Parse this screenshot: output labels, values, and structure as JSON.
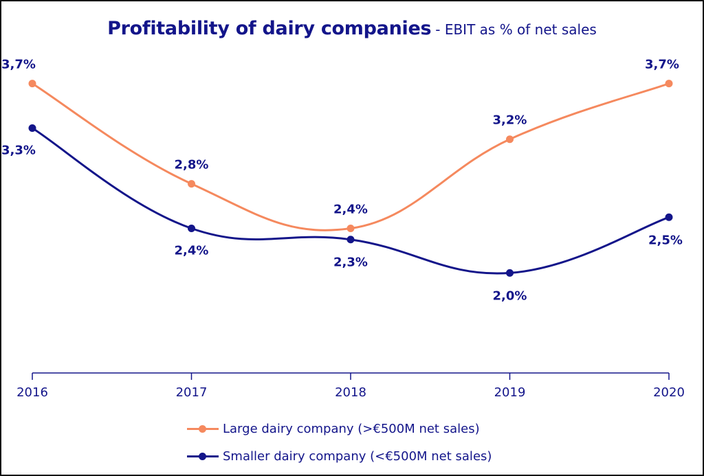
{
  "title": "Profitability of dairy companies",
  "subtitle": "- EBIT as % of net sales",
  "colors": {
    "large": "#f5895e",
    "small": "#13158a",
    "text": "#13158a"
  },
  "chart_data": {
    "type": "line",
    "title": "Profitability of dairy companies",
    "subtitle": "- EBIT as % of net sales",
    "x": [
      "2016",
      "2017",
      "2018",
      "2019",
      "2020"
    ],
    "series": [
      {
        "name": "Large dairy company (>€500M net sales)",
        "values": [
          3.7,
          2.8,
          2.4,
          3.2,
          3.7
        ],
        "labels": [
          "3,7%",
          "2,8%",
          "2,4%",
          "3,2%",
          "3,7%"
        ]
      },
      {
        "name": "Smaller dairy company (<€500M net sales)",
        "values": [
          3.3,
          2.4,
          2.3,
          2.0,
          2.5
        ],
        "labels": [
          "3,3%",
          "2,4%",
          "2,3%",
          "2,0%",
          "2,5%"
        ]
      }
    ],
    "ylim": [
      0,
      4.7
    ],
    "grid": false,
    "legend": "bottom"
  }
}
